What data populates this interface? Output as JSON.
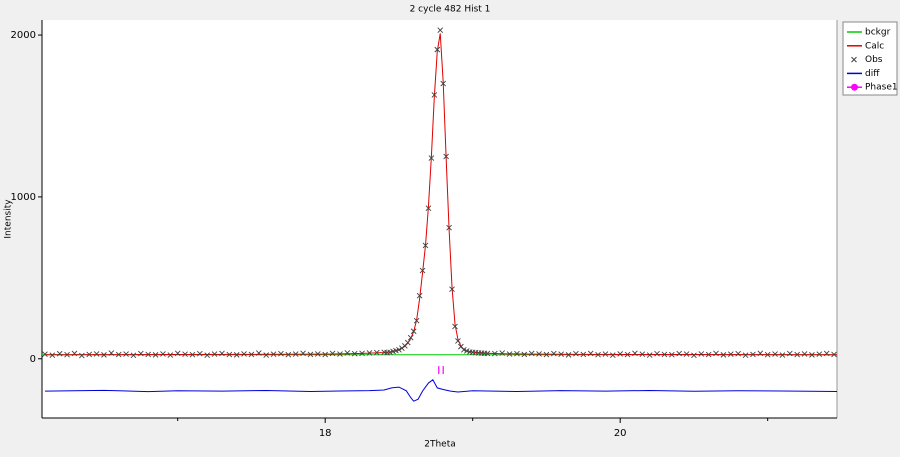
{
  "chart_data": {
    "type": "line",
    "title": "2 cycle 482 Hist 1",
    "x_label": "2Theta",
    "y_label": "Intensity",
    "xlim": [
      16.08,
      21.47
    ],
    "ylim": [
      -366,
      2093
    ],
    "xticks": [
      18,
      20
    ],
    "xminor": [
      17,
      19,
      21
    ],
    "yticks": [
      0,
      1000,
      2000
    ],
    "legend": "right",
    "series": [
      {
        "name": "bckgr",
        "color": "#00cc00",
        "style": "line",
        "x": [
          16.08,
          21.47
        ],
        "values": [
          25,
          25
        ]
      },
      {
        "name": "Calc",
        "color": "#e00000",
        "style": "line",
        "x": [
          16.1,
          17.0,
          17.5,
          18.0,
          18.2,
          18.3,
          18.4,
          18.42,
          18.44,
          18.46,
          18.48,
          18.5,
          18.52,
          18.54,
          18.56,
          18.58,
          18.6,
          18.62,
          18.64,
          18.66,
          18.68,
          18.7,
          18.72,
          18.74,
          18.76,
          18.78,
          18.8,
          18.82,
          18.84,
          18.86,
          18.88,
          18.9,
          18.92,
          18.94,
          18.96,
          18.98,
          19.0,
          19.02,
          19.04,
          19.06,
          19.08,
          19.1,
          19.2,
          19.4,
          19.7,
          20.5,
          21.47
        ],
        "values": [
          25,
          26,
          27,
          29,
          32,
          35,
          38,
          40,
          42,
          46,
          50,
          56,
          64,
          77,
          96,
          125,
          168,
          240,
          370,
          530,
          700,
          940,
          1250,
          1620,
          1900,
          2010,
          1710,
          1240,
          800,
          440,
          215,
          120,
          78,
          58,
          49,
          44,
          41,
          39,
          37,
          36,
          35,
          34,
          31,
          29,
          27,
          26,
          25
        ]
      },
      {
        "name": "Obs",
        "color": "#404040",
        "style": "cross",
        "x": [
          16.1,
          16.15,
          16.2,
          16.25,
          16.3,
          16.35,
          16.4,
          16.45,
          16.5,
          16.55,
          16.6,
          16.65,
          16.7,
          16.75,
          16.8,
          16.85,
          16.9,
          16.95,
          17.0,
          17.05,
          17.1,
          17.15,
          17.2,
          17.25,
          17.3,
          17.35,
          17.4,
          17.45,
          17.5,
          17.55,
          17.6,
          17.65,
          17.7,
          17.75,
          17.8,
          17.85,
          17.9,
          17.95,
          18.0,
          18.05,
          18.1,
          18.15,
          18.2,
          18.25,
          18.3,
          18.35,
          18.4,
          18.42,
          18.44,
          18.46,
          18.48,
          18.5,
          18.52,
          18.54,
          18.56,
          18.58,
          18.6,
          18.62,
          18.64,
          18.66,
          18.68,
          18.7,
          18.72,
          18.74,
          18.76,
          18.78,
          18.8,
          18.82,
          18.84,
          18.86,
          18.88,
          18.9,
          18.92,
          18.94,
          18.96,
          18.98,
          19.0,
          19.02,
          19.04,
          19.06,
          19.08,
          19.1,
          19.15,
          19.2,
          19.25,
          19.3,
          19.35,
          19.4,
          19.45,
          19.5,
          19.55,
          19.6,
          19.65,
          19.7,
          19.75,
          19.8,
          19.85,
          19.9,
          19.95,
          20.0,
          20.05,
          20.1,
          20.15,
          20.2,
          20.25,
          20.3,
          20.35,
          20.4,
          20.45,
          20.5,
          20.55,
          20.6,
          20.65,
          20.7,
          20.75,
          20.8,
          20.85,
          20.9,
          20.95,
          21.0,
          21.05,
          21.1,
          21.15,
          21.2,
          21.25,
          21.3,
          21.35,
          21.4,
          21.45
        ],
        "values": [
          28,
          22,
          31,
          25,
          33,
          20,
          27,
          30,
          24,
          35,
          26,
          29,
          21,
          32,
          27,
          24,
          30,
          23,
          34,
          28,
          25,
          31,
          22,
          29,
          33,
          26,
          24,
          30,
          27,
          35,
          23,
          28,
          31,
          25,
          29,
          34,
          27,
          30,
          26,
          33,
          29,
          36,
          31,
          34,
          36,
          38,
          40,
          38,
          40,
          45,
          50,
          55,
          65,
          80,
          100,
          130,
          170,
          235,
          390,
          545,
          700,
          930,
          1240,
          1630,
          1910,
          2030,
          1700,
          1250,
          810,
          430,
          200,
          110,
          75,
          55,
          48,
          42,
          40,
          38,
          36,
          35,
          34,
          33,
          32,
          35,
          29,
          31,
          27,
          33,
          30,
          26,
          32,
          28,
          24,
          31,
          27,
          33,
          25,
          29,
          22,
          30,
          26,
          34,
          28,
          23,
          31,
          27,
          25,
          32,
          29,
          21,
          30,
          26,
          33,
          24,
          28,
          31,
          22,
          27,
          34,
          25,
          29,
          23,
          32,
          26,
          30,
          24,
          28,
          33,
          27
        ]
      },
      {
        "name": "diff",
        "color": "#0000dd",
        "style": "line",
        "x": [
          16.1,
          16.5,
          16.8,
          17.0,
          17.3,
          17.6,
          17.9,
          18.1,
          18.3,
          18.4,
          18.45,
          18.5,
          18.55,
          18.58,
          18.6,
          18.63,
          18.66,
          18.7,
          18.73,
          18.76,
          18.8,
          18.85,
          18.9,
          19.0,
          19.3,
          19.6,
          19.9,
          20.2,
          20.5,
          20.8,
          21.1,
          21.47
        ],
        "values": [
          -200,
          -195,
          -203,
          -198,
          -200,
          -196,
          -202,
          -199,
          -197,
          -193,
          -180,
          -175,
          -198,
          -240,
          -262,
          -250,
          -200,
          -150,
          -130,
          -180,
          -190,
          -200,
          -205,
          -198,
          -202,
          -197,
          -200,
          -196,
          -201,
          -198,
          -199,
          -202
        ]
      },
      {
        "name": "Phase1",
        "color": "#ff00ff",
        "style": "tick",
        "x": [
          18.77,
          18.8
        ],
        "values": [
          -70,
          -70
        ]
      }
    ]
  }
}
